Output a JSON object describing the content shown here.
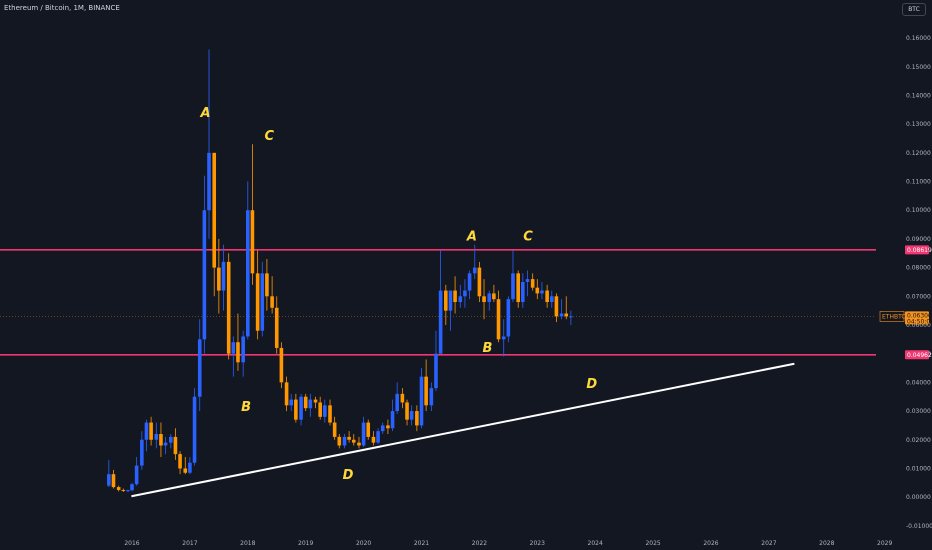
{
  "header": {
    "symbol_line": "Ethereum / Bitcoin, 1M, BINANCE",
    "currency_button": "BTC"
  },
  "colors": {
    "background": "#131722",
    "bull": "#2962ff",
    "bear": "#ff9800",
    "level": "#f23671",
    "trendline": "#ffffff",
    "wave_label": "#ffd83b",
    "last_price_tag": "#f7931a"
  },
  "chart_data": {
    "type": "candlestick",
    "title": "Ethereum / Bitcoin, 1M, BINANCE",
    "x_ticks": [
      "2016",
      "2017",
      "2018",
      "2019",
      "2020",
      "2021",
      "2022",
      "2023",
      "2024",
      "2025",
      "2026",
      "2027",
      "2028",
      "2029"
    ],
    "y_ticks": [
      "0.16000",
      "0.15000",
      "0.14000",
      "0.13000",
      "0.12000",
      "0.11000",
      "0.10000",
      "0.09000",
      "0.08000",
      "0.07000",
      "0.06000",
      "0.05000",
      "0.04000",
      "0.03000",
      "0.02000",
      "0.01000",
      "0.00000",
      "-0.01000"
    ],
    "ylim": [
      -0.0125,
      0.167
    ],
    "xlim": [
      2015.05,
      2029.5
    ],
    "grid": false,
    "candles": [
      [
        2015.6,
        0.004,
        0.013,
        0.0035,
        0.008
      ],
      [
        2015.68,
        0.008,
        0.0095,
        0.003,
        0.0035
      ],
      [
        2015.77,
        0.0035,
        0.004,
        0.002,
        0.0025
      ],
      [
        2015.85,
        0.0025,
        0.003,
        0.0018,
        0.0022
      ],
      [
        2015.93,
        0.0022,
        0.0026,
        0.0018,
        0.0024
      ],
      [
        2016.0,
        0.0024,
        0.005,
        0.002,
        0.0045
      ],
      [
        2016.08,
        0.0045,
        0.014,
        0.004,
        0.011
      ],
      [
        2016.17,
        0.011,
        0.023,
        0.0095,
        0.02
      ],
      [
        2016.25,
        0.02,
        0.027,
        0.016,
        0.026
      ],
      [
        2016.33,
        0.026,
        0.028,
        0.018,
        0.02
      ],
      [
        2016.42,
        0.02,
        0.026,
        0.017,
        0.022
      ],
      [
        2016.5,
        0.022,
        0.026,
        0.014,
        0.018
      ],
      [
        2016.58,
        0.018,
        0.021,
        0.015,
        0.019
      ],
      [
        2016.67,
        0.019,
        0.022,
        0.017,
        0.021
      ],
      [
        2016.75,
        0.021,
        0.024,
        0.013,
        0.015
      ],
      [
        2016.83,
        0.015,
        0.016,
        0.008,
        0.01
      ],
      [
        2016.92,
        0.01,
        0.014,
        0.008,
        0.0085
      ],
      [
        2017.0,
        0.0085,
        0.014,
        0.008,
        0.012
      ],
      [
        2017.08,
        0.012,
        0.038,
        0.011,
        0.035
      ],
      [
        2017.17,
        0.035,
        0.062,
        0.03,
        0.055
      ],
      [
        2017.25,
        0.055,
        0.112,
        0.05,
        0.1
      ],
      [
        2017.33,
        0.1,
        0.156,
        0.09,
        0.12
      ],
      [
        2017.42,
        0.12,
        0.12,
        0.07,
        0.08
      ],
      [
        2017.5,
        0.08,
        0.09,
        0.064,
        0.072
      ],
      [
        2017.58,
        0.072,
        0.088,
        0.065,
        0.082
      ],
      [
        2017.67,
        0.082,
        0.085,
        0.048,
        0.05
      ],
      [
        2017.75,
        0.05,
        0.056,
        0.042,
        0.054
      ],
      [
        2017.83,
        0.054,
        0.064,
        0.044,
        0.047
      ],
      [
        2017.92,
        0.047,
        0.058,
        0.042,
        0.056
      ],
      [
        2018.0,
        0.056,
        0.11,
        0.055,
        0.1
      ],
      [
        2018.08,
        0.1,
        0.123,
        0.074,
        0.078
      ],
      [
        2018.17,
        0.078,
        0.086,
        0.055,
        0.058
      ],
      [
        2018.25,
        0.058,
        0.082,
        0.056,
        0.078
      ],
      [
        2018.33,
        0.078,
        0.083,
        0.065,
        0.07
      ],
      [
        2018.42,
        0.07,
        0.077,
        0.064,
        0.066
      ],
      [
        2018.5,
        0.066,
        0.07,
        0.05,
        0.052
      ],
      [
        2018.58,
        0.052,
        0.054,
        0.038,
        0.04
      ],
      [
        2018.67,
        0.04,
        0.042,
        0.03,
        0.032
      ],
      [
        2018.75,
        0.032,
        0.036,
        0.03,
        0.034
      ],
      [
        2018.83,
        0.034,
        0.036,
        0.026,
        0.027
      ],
      [
        2018.92,
        0.027,
        0.036,
        0.025,
        0.035
      ],
      [
        2019.0,
        0.035,
        0.036,
        0.03,
        0.031
      ],
      [
        2019.08,
        0.031,
        0.036,
        0.028,
        0.034
      ],
      [
        2019.17,
        0.034,
        0.035,
        0.031,
        0.033
      ],
      [
        2019.25,
        0.033,
        0.035,
        0.027,
        0.028
      ],
      [
        2019.33,
        0.028,
        0.034,
        0.026,
        0.032
      ],
      [
        2019.42,
        0.032,
        0.034,
        0.025,
        0.026
      ],
      [
        2019.5,
        0.026,
        0.028,
        0.02,
        0.021
      ],
      [
        2019.58,
        0.021,
        0.022,
        0.017,
        0.018
      ],
      [
        2019.67,
        0.018,
        0.022,
        0.017,
        0.021
      ],
      [
        2019.75,
        0.021,
        0.023,
        0.019,
        0.02
      ],
      [
        2019.83,
        0.02,
        0.022,
        0.018,
        0.019
      ],
      [
        2019.92,
        0.019,
        0.021,
        0.017,
        0.018
      ],
      [
        2020.0,
        0.018,
        0.028,
        0.0175,
        0.026
      ],
      [
        2020.08,
        0.026,
        0.027,
        0.02,
        0.021
      ],
      [
        2020.17,
        0.021,
        0.023,
        0.018,
        0.019
      ],
      [
        2020.25,
        0.019,
        0.024,
        0.0185,
        0.023
      ],
      [
        2020.33,
        0.023,
        0.026,
        0.022,
        0.025
      ],
      [
        2020.42,
        0.025,
        0.027,
        0.022,
        0.024
      ],
      [
        2020.5,
        0.024,
        0.034,
        0.023,
        0.03
      ],
      [
        2020.58,
        0.03,
        0.04,
        0.029,
        0.036
      ],
      [
        2020.67,
        0.036,
        0.038,
        0.031,
        0.033
      ],
      [
        2020.75,
        0.033,
        0.034,
        0.025,
        0.027
      ],
      [
        2020.83,
        0.027,
        0.032,
        0.025,
        0.03
      ],
      [
        2020.92,
        0.03,
        0.032,
        0.023,
        0.025
      ],
      [
        2021.0,
        0.025,
        0.045,
        0.024,
        0.042
      ],
      [
        2021.08,
        0.042,
        0.048,
        0.03,
        0.032
      ],
      [
        2021.17,
        0.032,
        0.04,
        0.03,
        0.038
      ],
      [
        2021.25,
        0.038,
        0.058,
        0.037,
        0.05
      ],
      [
        2021.33,
        0.05,
        0.086,
        0.05,
        0.072
      ],
      [
        2021.42,
        0.072,
        0.074,
        0.06,
        0.065
      ],
      [
        2021.5,
        0.065,
        0.072,
        0.058,
        0.072
      ],
      [
        2021.58,
        0.072,
        0.077,
        0.064,
        0.068
      ],
      [
        2021.67,
        0.068,
        0.074,
        0.066,
        0.07
      ],
      [
        2021.75,
        0.07,
        0.076,
        0.066,
        0.072
      ],
      [
        2021.83,
        0.072,
        0.079,
        0.069,
        0.078
      ],
      [
        2021.92,
        0.078,
        0.088,
        0.076,
        0.08
      ],
      [
        2022.0,
        0.08,
        0.082,
        0.068,
        0.07
      ],
      [
        2022.08,
        0.07,
        0.076,
        0.062,
        0.068
      ],
      [
        2022.17,
        0.068,
        0.072,
        0.065,
        0.071
      ],
      [
        2022.25,
        0.071,
        0.074,
        0.068,
        0.069
      ],
      [
        2022.33,
        0.069,
        0.072,
        0.054,
        0.055
      ],
      [
        2022.42,
        0.055,
        0.062,
        0.049,
        0.056
      ],
      [
        2022.5,
        0.056,
        0.07,
        0.054,
        0.069
      ],
      [
        2022.58,
        0.069,
        0.086,
        0.068,
        0.078
      ],
      [
        2022.67,
        0.078,
        0.079,
        0.066,
        0.068
      ],
      [
        2022.75,
        0.068,
        0.078,
        0.066,
        0.075
      ],
      [
        2022.83,
        0.075,
        0.079,
        0.07,
        0.076
      ],
      [
        2022.92,
        0.076,
        0.078,
        0.072,
        0.073
      ],
      [
        2023.0,
        0.073,
        0.076,
        0.069,
        0.071
      ],
      [
        2023.08,
        0.071,
        0.075,
        0.069,
        0.072
      ],
      [
        2023.17,
        0.072,
        0.074,
        0.066,
        0.068
      ],
      [
        2023.25,
        0.068,
        0.072,
        0.066,
        0.07
      ],
      [
        2023.33,
        0.07,
        0.071,
        0.061,
        0.063
      ],
      [
        2023.42,
        0.063,
        0.069,
        0.062,
        0.064
      ],
      [
        2023.5,
        0.064,
        0.07,
        0.062,
        0.063
      ],
      [
        2023.58,
        0.063,
        0.065,
        0.06,
        0.063
      ]
    ],
    "horizontal_levels": [
      {
        "value": 0.08619,
        "label": "0.08619"
      },
      {
        "value": 0.04962,
        "label": "0.04962"
      }
    ],
    "last_price": {
      "symbol": "ETHBTC",
      "value": 0.063,
      "label": "0.06300",
      "countdown": "04:50:00"
    },
    "trendline": {
      "start": [
        2015.99,
        0.0003
      ],
      "end": [
        2027.44,
        0.0465
      ]
    },
    "wave_labels": [
      {
        "text": "A",
        "x": 2017.27,
        "y": 0.1325
      },
      {
        "text": "C",
        "x": 2018.37,
        "y": 0.1245
      },
      {
        "text": "B",
        "x": 2017.97,
        "y": 0.03
      },
      {
        "text": "D",
        "x": 2019.73,
        "y": 0.0064
      },
      {
        "text": "A",
        "x": 2021.87,
        "y": 0.0895
      },
      {
        "text": "C",
        "x": 2022.84,
        "y": 0.0895
      },
      {
        "text": "B",
        "x": 2022.14,
        "y": 0.0505
      },
      {
        "text": "D",
        "x": 2023.94,
        "y": 0.038
      }
    ]
  }
}
